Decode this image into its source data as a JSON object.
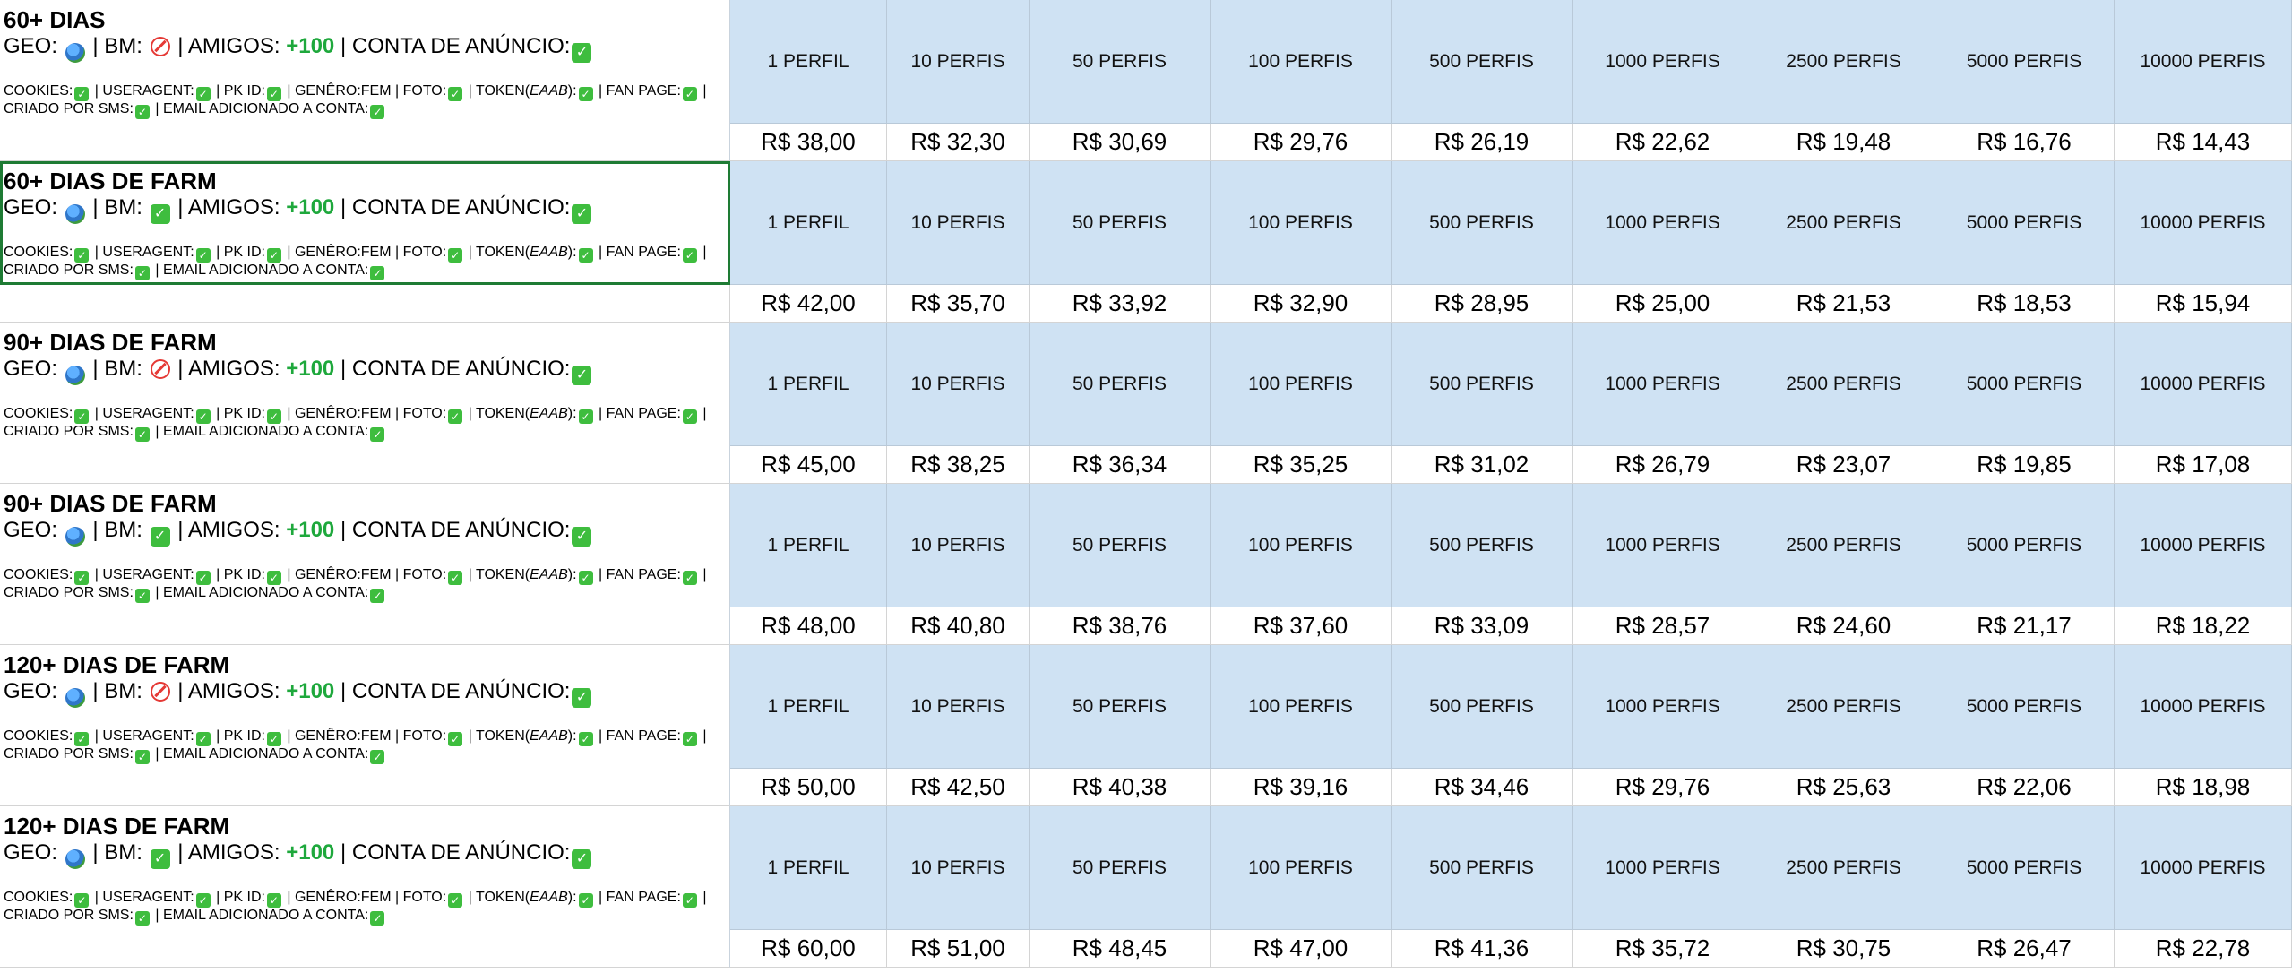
{
  "labels": {
    "geo": "GEO:",
    "bm": "BM:",
    "amigos": "AMIGOS:",
    "conta": "CONTA DE ANÚNCIO:",
    "cookies": "COOKIES:",
    "useragent": "USERAGENT:",
    "pkid": "PK ID:",
    "genero": "GENÊRO:FEM",
    "foto": "FOTO:",
    "token": "TOKEN(",
    "token_italic": "EAAB",
    "token_end": "):",
    "fanpage": "FAN PAGE:",
    "sms": "CRIADO POR SMS:",
    "email": "EMAIL ADICIONADO A CONTA:"
  },
  "columns": [
    "1 PERFIL",
    "10 PERFIS",
    "50 PERFIS",
    "100 PERFIS",
    "500 PERFIS",
    "1000 PERFIS",
    "2500 PERFIS",
    "5000 PERFIS",
    "10000 PERFIS"
  ],
  "rows": [
    {
      "title": "60+ DIAS",
      "bm": "ban",
      "amigos": "+100",
      "prices": [
        "R$ 38,00",
        "R$ 32,30",
        "R$ 30,69",
        "R$ 29,76",
        "R$ 26,19",
        "R$ 22,62",
        "R$ 19,48",
        "R$ 16,76",
        "R$ 14,43"
      ]
    },
    {
      "title": "60+ DIAS DE FARM",
      "bm": "check",
      "amigos": "+100",
      "prices": [
        "R$ 42,00",
        "R$ 35,70",
        "R$ 33,92",
        "R$ 32,90",
        "R$ 28,95",
        "R$ 25,00",
        "R$ 21,53",
        "R$ 18,53",
        "R$ 15,94"
      ]
    },
    {
      "title": "90+ DIAS DE FARM",
      "bm": "ban",
      "amigos": "+100",
      "prices": [
        "R$ 45,00",
        "R$ 38,25",
        "R$ 36,34",
        "R$ 35,25",
        "R$ 31,02",
        "R$ 26,79",
        "R$ 23,07",
        "R$ 19,85",
        "R$ 17,08"
      ]
    },
    {
      "title": "90+ DIAS DE FARM",
      "bm": "check",
      "amigos": "+100",
      "prices": [
        "R$ 48,00",
        "R$ 40,80",
        "R$ 38,76",
        "R$ 37,60",
        "R$ 33,09",
        "R$ 28,57",
        "R$ 24,60",
        "R$ 21,17",
        "R$ 18,22"
      ]
    },
    {
      "title": "120+ DIAS DE FARM",
      "bm": "ban",
      "amigos": "+100",
      "prices": [
        "R$ 50,00",
        "R$ 42,50",
        "R$ 40,38",
        "R$ 39,16",
        "R$ 34,46",
        "R$ 29,76",
        "R$ 25,63",
        "R$ 22,06",
        "R$ 18,98"
      ]
    },
    {
      "title": "120+ DIAS DE FARM",
      "bm": "check",
      "amigos": "+100",
      "prices": [
        "R$ 60,00",
        "R$ 51,00",
        "R$ 48,45",
        "R$ 47,00",
        "R$ 41,36",
        "R$ 35,72",
        "R$ 30,75",
        "R$ 26,47",
        "R$ 22,78"
      ]
    }
  ],
  "colors": {
    "header_bg": "#cfe2f3",
    "selected_border": "#1e7b34",
    "amigos_green": "#1ea83c",
    "check_green": "#3ebd3e",
    "ban_red": "#e53935"
  }
}
